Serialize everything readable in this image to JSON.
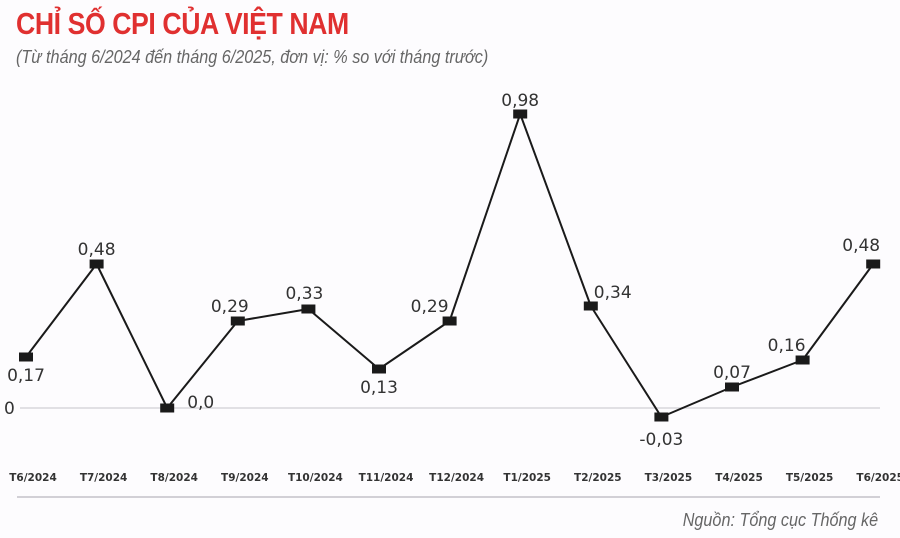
{
  "header": {
    "title": "CHỈ SỐ CPI CỦA VIỆT NAM",
    "subtitle": "(Từ tháng 6/2024 đến tháng 6/2025, đơn vị: % so với tháng trước)"
  },
  "footer": {
    "source": "Nguồn: Tổng cục Thống kê"
  },
  "colors": {
    "title": "#e03030",
    "line": "#1a1a1a",
    "highlight_label": "#e03030",
    "baseline": "#d8d6dc"
  },
  "axis": {
    "zero_label": "0"
  },
  "chart_data": {
    "type": "line",
    "title": "CHỈ SỐ CPI CỦA VIỆT NAM",
    "subtitle": "(Từ tháng 6/2024 đến tháng 6/2025, đơn vị: % so với tháng trước)",
    "xlabel": "",
    "ylabel": "% so với tháng trước",
    "categories": [
      "T6/2024",
      "T7/2024",
      "T8/2024",
      "T9/2024",
      "T10/2024",
      "T11/2024",
      "T12/2024",
      "T1/2025",
      "T2/2025",
      "T3/2025",
      "T4/2025",
      "T5/2025",
      "T6/2025"
    ],
    "series": [
      {
        "name": "CPI",
        "values": [
          0.17,
          0.48,
          0.0,
          0.29,
          0.33,
          0.13,
          0.29,
          0.98,
          0.34,
          -0.03,
          0.07,
          0.16,
          0.48
        ],
        "labels": [
          "0,17",
          "0,48",
          "0,0",
          "0,29",
          "0,33",
          "0,13",
          "0,29",
          "0,98",
          "0,34",
          "-0,03",
          "0,07",
          "0,16",
          "0,48"
        ]
      }
    ],
    "highlight_index": 12,
    "ylim": [
      -0.1,
      1.0
    ],
    "grid": false,
    "baseline": 0,
    "legend": "none",
    "annotation": "Nguồn: Tổng cục Thống kê"
  }
}
